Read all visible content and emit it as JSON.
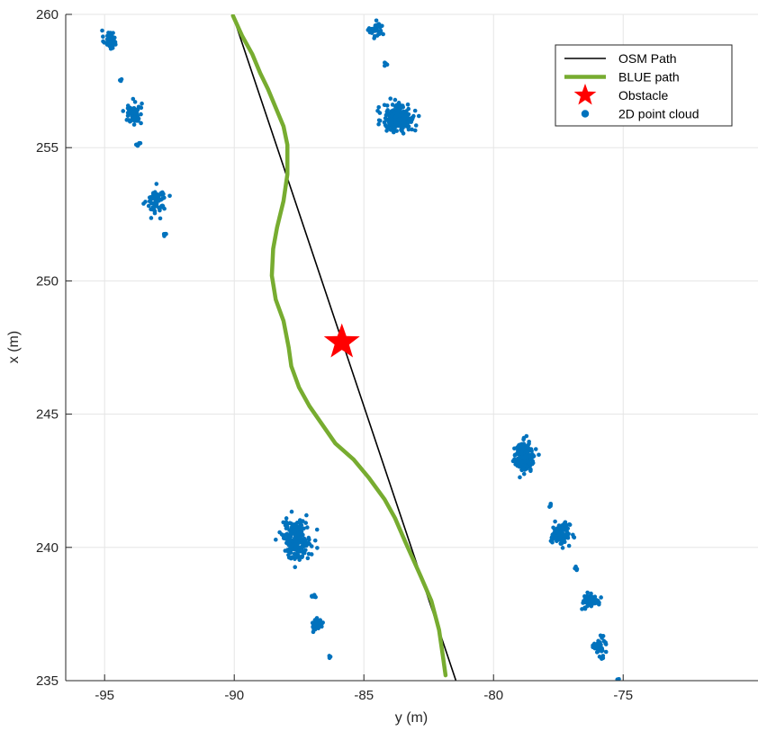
{
  "chart_data": {
    "type": "scatter",
    "title": "",
    "xlabel": "y (m)",
    "ylabel": "x (m)",
    "xlim": [
      -96.5,
      -69.8
    ],
    "ylim": [
      235,
      260
    ],
    "x_reversed": false,
    "grid": true,
    "legend_position": "top-right",
    "xticks": [
      -95,
      -90,
      -85,
      -80,
      -75
    ],
    "yticks": [
      235,
      240,
      245,
      250,
      255,
      260
    ],
    "colors": {
      "osm_path": "#000000",
      "blue_path": "#77ac30",
      "obstacle": "#ff0000",
      "point_cloud": "#0072bd",
      "grid": "#e5e5e5",
      "axis": "#262626"
    },
    "series": [
      {
        "name": "OSM Path",
        "kind": "line",
        "points": [
          [
            -90.05,
            259.95
          ],
          [
            -81.45,
            235.0
          ]
        ]
      },
      {
        "name": "BLUE path",
        "kind": "line",
        "points": [
          [
            -90.05,
            259.95
          ],
          [
            -89.7,
            259.2
          ],
          [
            -89.3,
            258.5
          ],
          [
            -89.0,
            257.8
          ],
          [
            -88.7,
            257.2
          ],
          [
            -88.4,
            256.5
          ],
          [
            -88.1,
            255.8
          ],
          [
            -87.95,
            255.1
          ],
          [
            -87.95,
            254.0
          ],
          [
            -88.1,
            253.0
          ],
          [
            -88.35,
            252.0
          ],
          [
            -88.5,
            251.2
          ],
          [
            -88.55,
            250.2
          ],
          [
            -88.4,
            249.3
          ],
          [
            -88.1,
            248.5
          ],
          [
            -87.9,
            247.5
          ],
          [
            -87.8,
            246.8
          ],
          [
            -87.5,
            246.0
          ],
          [
            -87.1,
            245.3
          ],
          [
            -86.6,
            244.6
          ],
          [
            -86.1,
            243.9
          ],
          [
            -85.4,
            243.3
          ],
          [
            -84.8,
            242.6
          ],
          [
            -84.2,
            241.8
          ],
          [
            -83.8,
            241.1
          ],
          [
            -83.4,
            240.2
          ],
          [
            -82.8,
            238.9
          ],
          [
            -82.4,
            238.0
          ],
          [
            -82.1,
            236.9
          ],
          [
            -81.95,
            235.9
          ],
          [
            -81.85,
            235.2
          ]
        ]
      },
      {
        "name": "Obstacle",
        "kind": "marker",
        "points": [
          [
            -85.85,
            247.7
          ]
        ]
      },
      {
        "name": "2D point cloud",
        "kind": "scatter",
        "clusters": [
          {
            "center": [
              -94.8,
              259.05
            ],
            "spread": [
              0.22,
              0.32
            ],
            "count": 45
          },
          {
            "center": [
              -94.4,
              257.55
            ],
            "spread": [
              0.05,
              0.08
            ],
            "count": 4
          },
          {
            "center": [
              -93.9,
              256.3
            ],
            "spread": [
              0.3,
              0.38
            ],
            "count": 65
          },
          {
            "center": [
              -93.7,
              255.1
            ],
            "spread": [
              0.07,
              0.08
            ],
            "count": 6
          },
          {
            "center": [
              -93.0,
              253.0
            ],
            "spread": [
              0.32,
              0.45
            ],
            "count": 75
          },
          {
            "center": [
              -92.65,
              251.75
            ],
            "spread": [
              0.12,
              0.1
            ],
            "count": 5
          },
          {
            "center": [
              -84.5,
              259.4
            ],
            "spread": [
              0.25,
              0.25
            ],
            "count": 40
          },
          {
            "center": [
              -84.15,
              258.15
            ],
            "spread": [
              0.06,
              0.06
            ],
            "count": 6
          },
          {
            "center": [
              -83.65,
              256.1
            ],
            "spread": [
              0.55,
              0.48
            ],
            "count": 220
          },
          {
            "center": [
              -87.6,
              240.3
            ],
            "spread": [
              0.5,
              0.65
            ],
            "count": 200
          },
          {
            "center": [
              -86.95,
              238.2
            ],
            "spread": [
              0.07,
              0.1
            ],
            "count": 6
          },
          {
            "center": [
              -86.8,
              237.1
            ],
            "spread": [
              0.18,
              0.2
            ],
            "count": 40
          },
          {
            "center": [
              -86.3,
              235.9
            ],
            "spread": [
              0.05,
              0.05
            ],
            "count": 3
          },
          {
            "center": [
              -78.8,
              243.4
            ],
            "spread": [
              0.35,
              0.5
            ],
            "count": 180
          },
          {
            "center": [
              -77.8,
              241.6
            ],
            "spread": [
              0.07,
              0.07
            ],
            "count": 4
          },
          {
            "center": [
              -77.4,
              240.5
            ],
            "spread": [
              0.32,
              0.35
            ],
            "count": 110
          },
          {
            "center": [
              -76.85,
              239.2
            ],
            "spread": [
              0.06,
              0.06
            ],
            "count": 5
          },
          {
            "center": [
              -76.25,
              238.0
            ],
            "spread": [
              0.28,
              0.25
            ],
            "count": 60
          },
          {
            "center": [
              -75.9,
              236.3
            ],
            "spread": [
              0.22,
              0.32
            ],
            "count": 45
          },
          {
            "center": [
              -75.2,
              235.05
            ],
            "spread": [
              0.04,
              0.04
            ],
            "count": 2
          }
        ]
      }
    ]
  }
}
